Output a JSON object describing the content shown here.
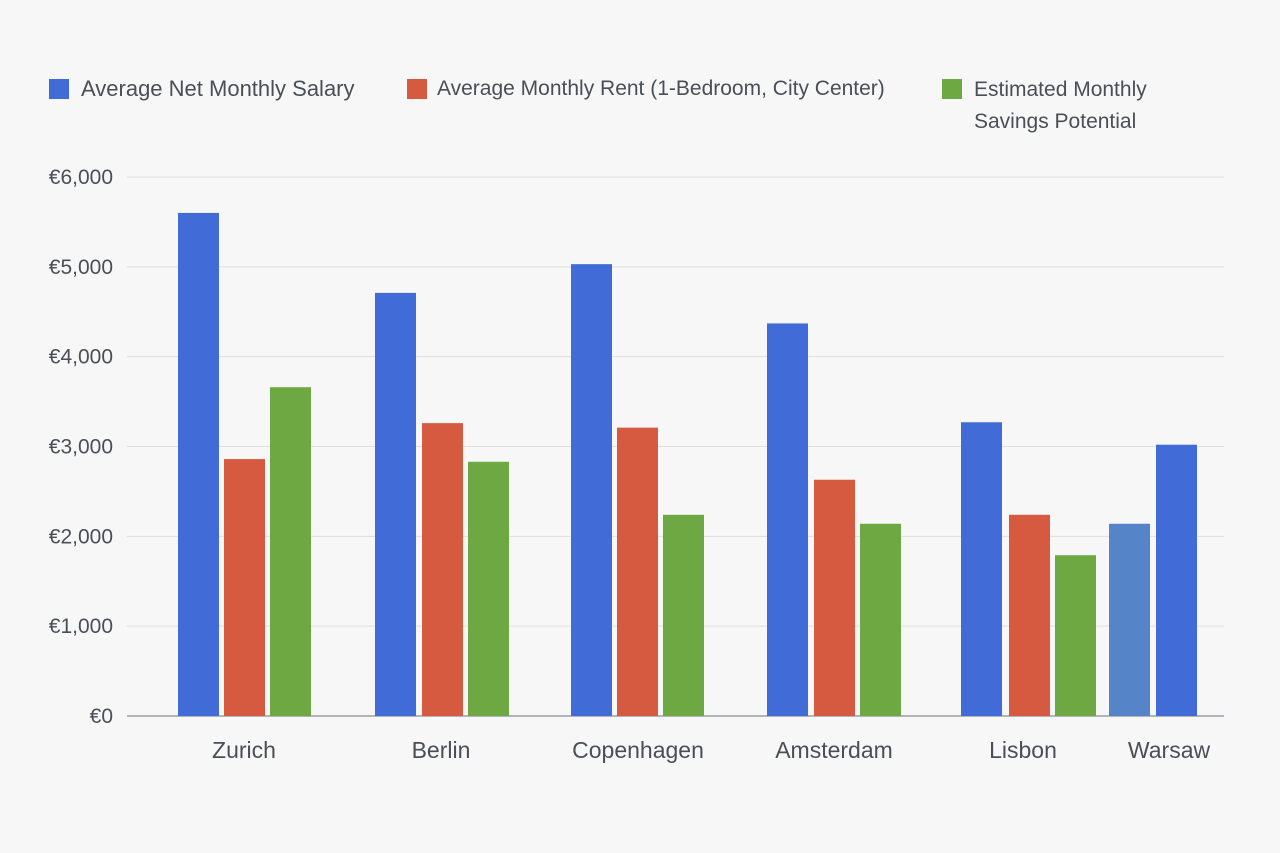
{
  "chart_data": {
    "type": "bar",
    "title": "",
    "xlabel": "",
    "ylabel": "",
    "categories": [
      "Zurich",
      "Berlin",
      "Copenhagen",
      "Amsterdam",
      "Lisbon",
      "Warsaw"
    ],
    "ylim": [
      0,
      6000
    ],
    "yticks": [
      0,
      1000,
      2000,
      3000,
      4000,
      5000,
      6000
    ],
    "ytick_labels": [
      "€0",
      "€1,000",
      "€2,000",
      "€3,000",
      "€4,000",
      "€5,000",
      "€6,000"
    ],
    "grid": true,
    "legend_position": "top",
    "series": [
      {
        "name": "Average Net Monthly Salary",
        "color": "#416cd8",
        "values": [
          5600,
          4710,
          5030,
          4370,
          3270,
          3020
        ]
      },
      {
        "name": "Average Monthly Rent  (1-Bedroom, City Center)",
        "color": "#d65a40",
        "values": [
          2860,
          3260,
          3210,
          2630,
          2240,
          null
        ]
      },
      {
        "name": "Estimated Monthly\nSavings Potential",
        "color": "#6ea842",
        "values": [
          3660,
          2830,
          2240,
          2140,
          1790,
          null
        ]
      },
      {
        "color": "#5684c8",
        "values": [
          null,
          null,
          null,
          null,
          null,
          2140
        ]
      }
    ]
  }
}
